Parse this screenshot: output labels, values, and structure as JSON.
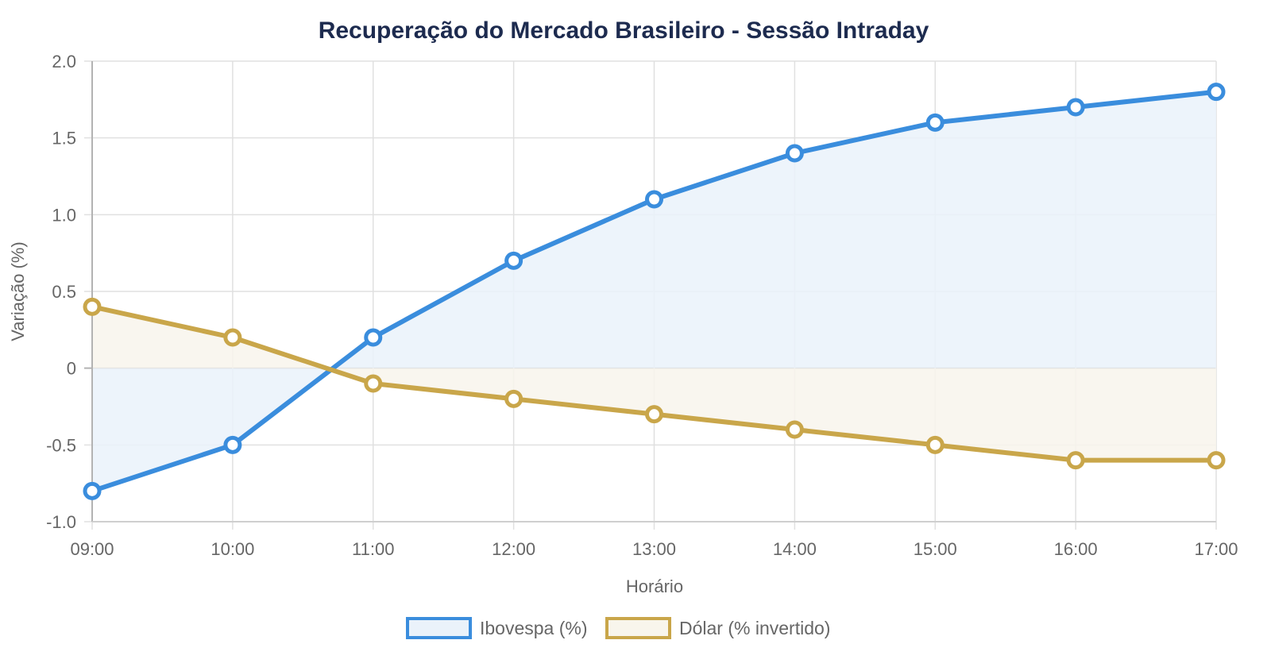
{
  "chart_data": {
    "type": "line",
    "title": "Recuperação do Mercado Brasileiro - Sessão Intraday",
    "xlabel": "Horário",
    "ylabel": "Variação (%)",
    "categories": [
      "09:00",
      "10:00",
      "11:00",
      "12:00",
      "13:00",
      "14:00",
      "15:00",
      "16:00",
      "17:00"
    ],
    "ylim": [
      -1.0,
      2.0
    ],
    "yticks": [
      {
        "value": 2.0,
        "label": "2.0"
      },
      {
        "value": 1.5,
        "label": "1.5"
      },
      {
        "value": 1.0,
        "label": "1.0"
      },
      {
        "value": 0.5,
        "label": "0.5"
      },
      {
        "value": 0,
        "label": "0"
      },
      {
        "value": -0.5,
        "label": "-0.5"
      },
      {
        "value": -1.0,
        "label": "-1.0"
      }
    ],
    "grid": true,
    "fill": "origin",
    "legend_position": "bottom",
    "series": [
      {
        "name": "Ibovespa (%)",
        "color": "#3a8ddd",
        "fill_color": "#eaf2fa",
        "values": [
          -0.8,
          -0.5,
          0.2,
          0.7,
          1.1,
          1.4,
          1.6,
          1.7,
          1.8
        ]
      },
      {
        "name": "Dólar (% invertido)",
        "color": "#c9a64a",
        "fill_color": "#f8f5ec",
        "values": [
          0.4,
          0.2,
          -0.1,
          -0.2,
          -0.3,
          -0.4,
          -0.5,
          -0.6,
          -0.6
        ]
      }
    ]
  },
  "legend": {
    "items": [
      {
        "label": "Ibovespa (%)"
      },
      {
        "label": "Dólar (% invertido)"
      }
    ]
  }
}
